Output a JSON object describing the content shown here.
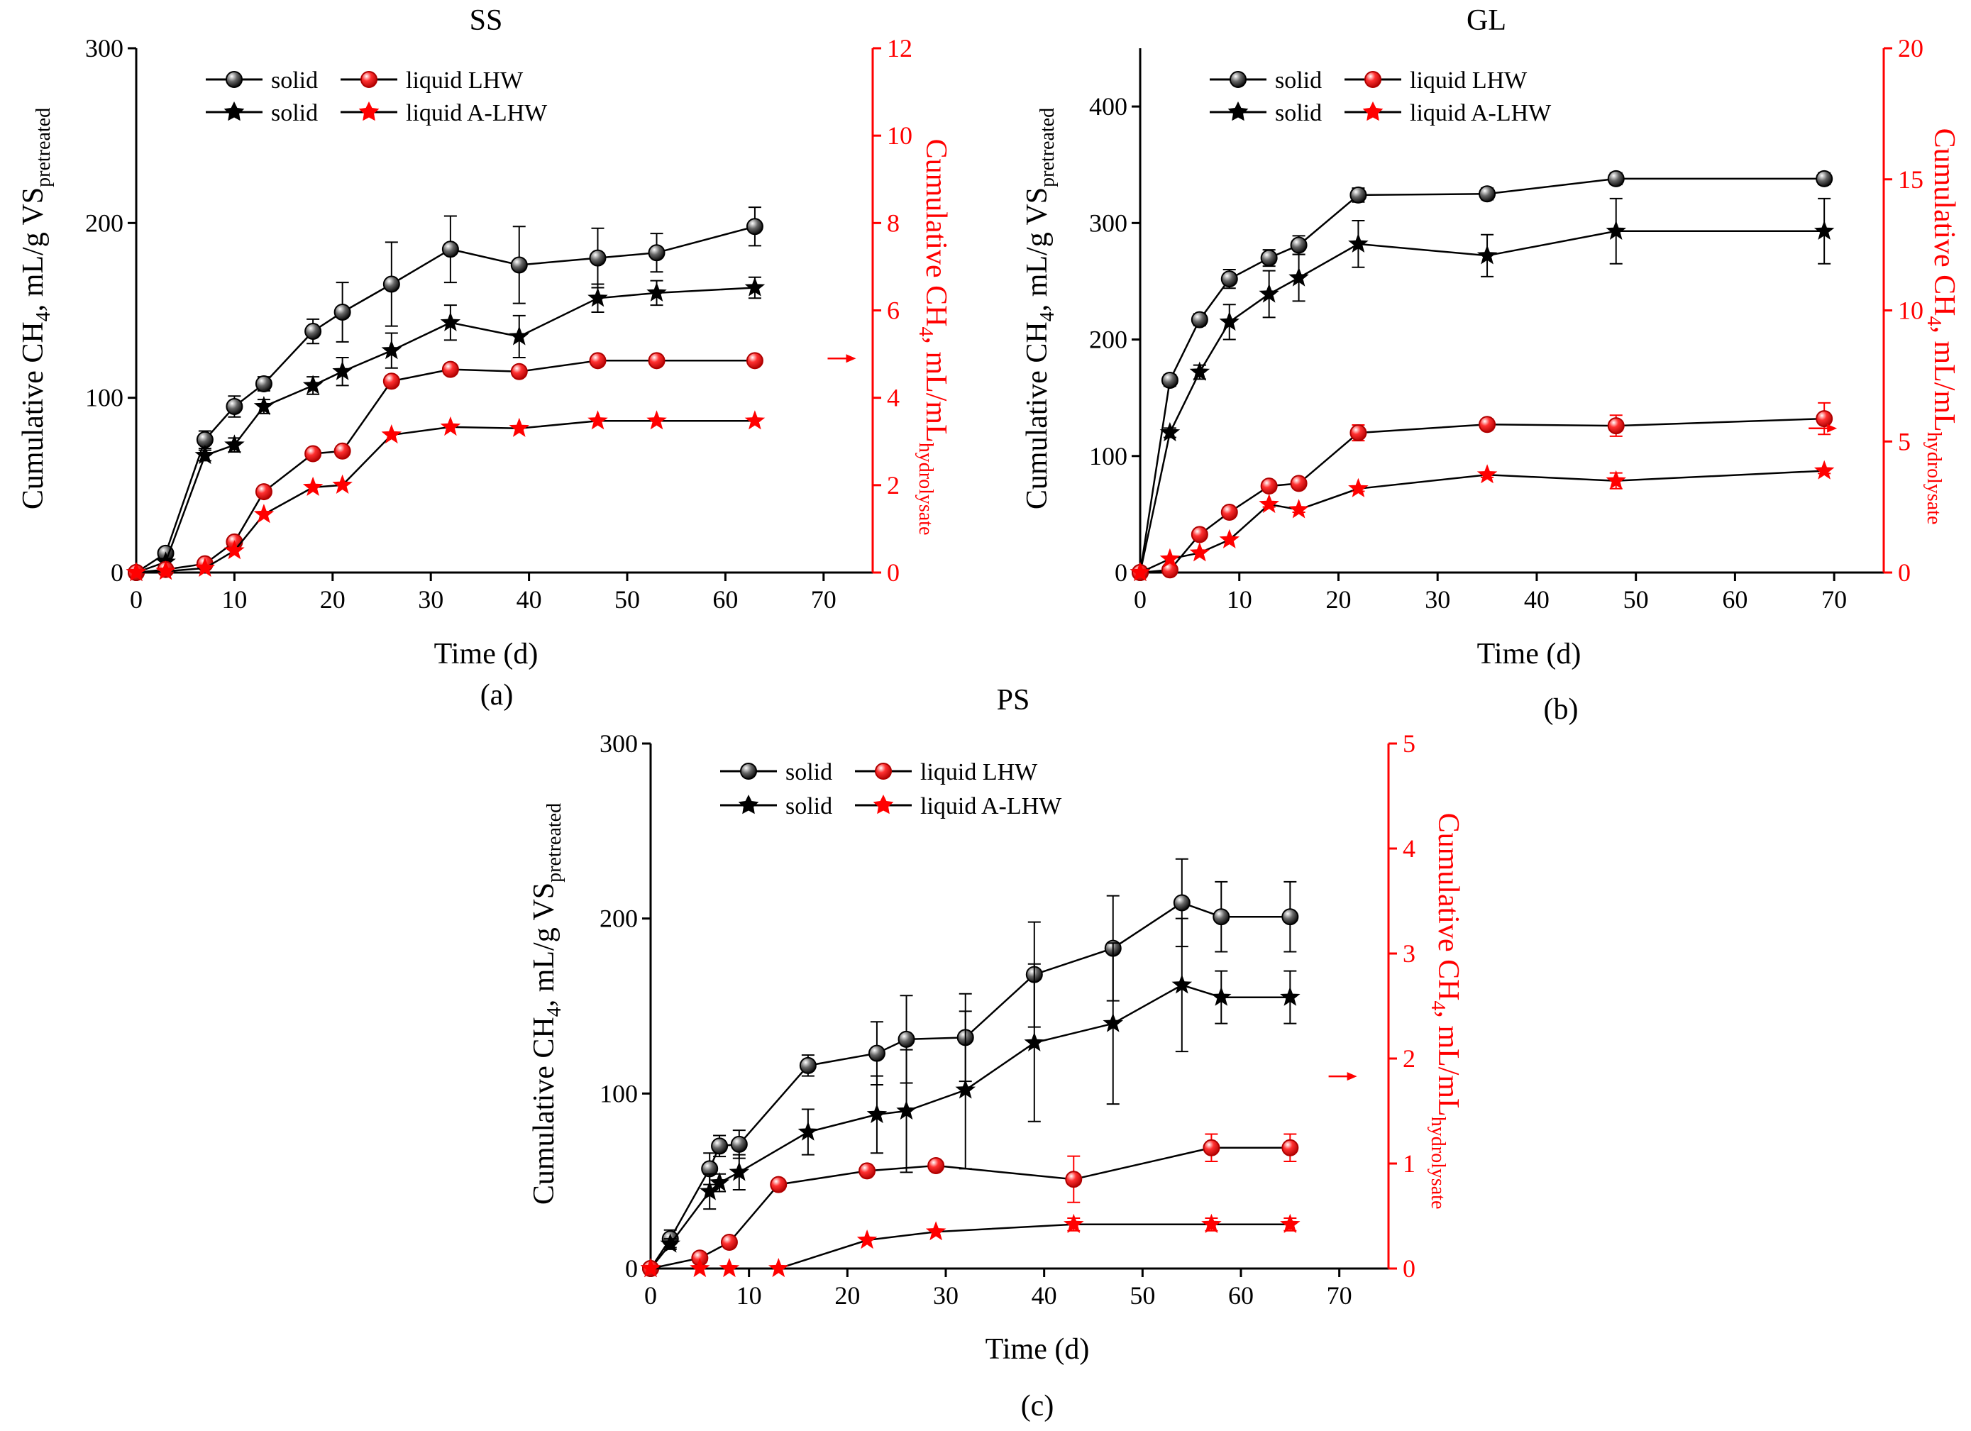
{
  "figure": {
    "colors": {
      "solid": "#000000",
      "liquid": "#ff0000",
      "axis": "#000000",
      "right_axis": "#ff0000"
    },
    "icons": {
      "solid_marker": "sphere-icon",
      "a_lhw_marker": "star-icon",
      "arrow": "arrow-right-icon"
    }
  },
  "chart_data": [
    {
      "type": "line",
      "title": "SS",
      "panel_label": "(a)",
      "xlabel": "Time (d)",
      "ylabel": {
        "pre": "Cumulative CH",
        "sub1": "4",
        "mid": ", mL/g VS",
        "sub2": "pretreated"
      },
      "y2label": {
        "pre": "Cumulative CH",
        "sub1": "4",
        "mid": ", mL/mL",
        "sub2": "hydrolysate"
      },
      "xlim": [
        0,
        75
      ],
      "ylim": [
        0,
        300
      ],
      "y2lim": [
        0,
        12
      ],
      "xticks": [
        0,
        10,
        20,
        30,
        40,
        50,
        60,
        70
      ],
      "yticks": [
        0,
        100,
        200,
        300
      ],
      "y2ticks": [
        0,
        2,
        4,
        6,
        8,
        10,
        12
      ],
      "grid": false,
      "legend_position": "top-center",
      "arrow": {
        "x": 72,
        "y2": 4.9
      },
      "series": [
        {
          "name": "solid",
          "legend": "solid",
          "axis": "left",
          "marker": "sphere",
          "color": "black",
          "x": [
            0,
            3,
            7,
            10,
            13,
            18,
            21,
            26,
            32,
            39,
            47,
            53,
            63
          ],
          "y": [
            0,
            11,
            76,
            95,
            108,
            138,
            149,
            165,
            185,
            176,
            180,
            183,
            198
          ],
          "err": [
            0,
            3,
            5,
            6,
            4,
            7,
            17,
            24,
            19,
            22,
            17,
            11,
            11
          ]
        },
        {
          "name": "solid",
          "legend": "solid",
          "axis": "left",
          "marker": "star",
          "color": "black",
          "x": [
            0,
            3,
            7,
            10,
            13,
            18,
            21,
            26,
            32,
            39,
            47,
            53,
            63
          ],
          "y": [
            0,
            6,
            67,
            73,
            95,
            107,
            115,
            127,
            143,
            135,
            157,
            160,
            163
          ],
          "err": [
            0,
            2,
            3,
            4,
            4,
            5,
            8,
            10,
            10,
            12,
            8,
            7,
            6
          ]
        },
        {
          "name": "liquid LHW",
          "legend": "liquid LHW",
          "axis": "right",
          "marker": "sphere",
          "color": "red",
          "x": [
            0,
            3,
            7,
            10,
            13,
            18,
            21,
            26,
            32,
            39,
            47,
            53,
            63
          ],
          "y": [
            0,
            0.07,
            0.2,
            0.7,
            1.85,
            2.72,
            2.78,
            4.38,
            4.65,
            4.6,
            4.85,
            4.85,
            4.85
          ],
          "err": [
            0,
            0,
            0,
            0,
            0,
            0,
            0,
            0,
            0,
            0,
            0,
            0,
            0
          ]
        },
        {
          "name": "liquid A-LHW",
          "legend": "liquid A-LHW",
          "axis": "right",
          "marker": "star",
          "color": "red",
          "x": [
            0,
            3,
            7,
            10,
            13,
            18,
            21,
            26,
            32,
            39,
            47,
            53,
            63
          ],
          "y": [
            0,
            0.03,
            0.1,
            0.5,
            1.33,
            1.95,
            2.0,
            3.15,
            3.33,
            3.3,
            3.47,
            3.47,
            3.47
          ],
          "err": [
            0,
            0,
            0,
            0,
            0,
            0,
            0,
            0,
            0,
            0,
            0,
            0,
            0
          ]
        }
      ]
    },
    {
      "type": "line",
      "title": "GL",
      "panel_label": "(b)",
      "xlabel": "Time (d)",
      "ylabel": {
        "pre": "Cumulative CH",
        "sub1": "4",
        "mid": ", mL/g VS",
        "sub2": "pretreated"
      },
      "y2label": {
        "pre": "Cumulative CH",
        "sub1": "4",
        "mid": ", mL/mL",
        "sub2": "hydrolysate"
      },
      "xlim": [
        0,
        75
      ],
      "ylim": [
        0,
        450
      ],
      "y2lim": [
        0,
        20
      ],
      "xticks": [
        0,
        10,
        20,
        30,
        40,
        50,
        60,
        70
      ],
      "yticks": [
        0,
        100,
        200,
        300,
        400
      ],
      "y2ticks": [
        0,
        5,
        10,
        15,
        20
      ],
      "grid": false,
      "legend_position": "top-left",
      "arrow": {
        "x": 69,
        "y2": 5.5
      },
      "series": [
        {
          "name": "solid",
          "legend": "solid",
          "axis": "left",
          "marker": "sphere",
          "color": "black",
          "x": [
            0,
            3,
            6,
            9,
            13,
            16,
            22,
            35,
            48,
            69
          ],
          "y": [
            0,
            165,
            217,
            252,
            270,
            281,
            324,
            325,
            338,
            338
          ],
          "err": [
            0,
            5,
            5,
            8,
            7,
            8,
            6,
            5,
            5,
            5
          ]
        },
        {
          "name": "solid",
          "legend": "solid",
          "axis": "left",
          "marker": "star",
          "color": "black",
          "x": [
            0,
            3,
            6,
            9,
            13,
            16,
            22,
            35,
            48,
            69
          ],
          "y": [
            0,
            120,
            172,
            215,
            239,
            253,
            282,
            272,
            293,
            293
          ],
          "err": [
            0,
            4,
            6,
            15,
            20,
            20,
            20,
            18,
            28,
            28
          ]
        },
        {
          "name": "liquid LHW",
          "legend": "liquid LHW",
          "axis": "right",
          "marker": "sphere",
          "color": "red",
          "x": [
            0,
            3,
            6,
            9,
            13,
            16,
            22,
            35,
            48,
            69
          ],
          "y": [
            0,
            0.1,
            1.45,
            2.3,
            3.3,
            3.4,
            5.33,
            5.65,
            5.6,
            5.87
          ],
          "err": [
            0,
            0,
            0,
            0.1,
            0.15,
            0.15,
            0.3,
            0.2,
            0.4,
            0.6
          ]
        },
        {
          "name": "liquid A-LHW",
          "legend": "liquid A-LHW",
          "axis": "right",
          "marker": "star",
          "color": "red",
          "x": [
            0,
            3,
            6,
            9,
            13,
            16,
            22,
            35,
            48,
            69
          ],
          "y": [
            0,
            0.52,
            0.75,
            1.25,
            2.6,
            2.4,
            3.2,
            3.73,
            3.5,
            3.88
          ],
          "err": [
            0,
            0,
            0,
            0,
            0.1,
            0.1,
            0.1,
            0.1,
            0.3,
            0.1
          ]
        }
      ]
    },
    {
      "type": "line",
      "title": "PS",
      "panel_label": "(c)",
      "xlabel": "Time (d)",
      "ylabel": {
        "pre": "Cumulative CH",
        "sub1": "4",
        "mid": ", mL/g VS",
        "sub2": "pretreated"
      },
      "y2label": {
        "pre": "Cumulative CH",
        "sub1": "4",
        "mid": ", mL/mL",
        "sub2": "hydrolysate"
      },
      "xlim": [
        0,
        75
      ],
      "ylim": [
        0,
        300
      ],
      "y2lim": [
        0,
        5
      ],
      "xticks": [
        0,
        10,
        20,
        30,
        40,
        50,
        60,
        70
      ],
      "yticks": [
        0,
        100,
        200,
        300
      ],
      "y2ticks": [
        0,
        1,
        2,
        3,
        4,
        5
      ],
      "grid": false,
      "legend_position": "top-left",
      "arrow": {
        "x": 70.5,
        "y2": 1.83
      },
      "series": [
        {
          "name": "solid",
          "legend": "solid",
          "axis": "left",
          "marker": "sphere",
          "color": "black",
          "x": [
            0,
            2,
            6,
            7,
            9,
            16,
            23,
            26,
            32,
            39,
            47,
            54,
            58,
            65
          ],
          "y": [
            0,
            17,
            57,
            70,
            71,
            116,
            123,
            131,
            132,
            168,
            183,
            209,
            201,
            201
          ],
          "err": [
            0,
            5,
            9,
            6,
            8,
            6,
            18,
            25,
            25,
            30,
            30,
            25,
            20,
            20
          ]
        },
        {
          "name": "solid",
          "legend": "solid",
          "axis": "left",
          "marker": "star",
          "color": "black",
          "x": [
            0,
            2,
            6,
            7,
            9,
            16,
            23,
            26,
            32,
            39,
            47,
            54,
            58,
            65
          ],
          "y": [
            0,
            14,
            44,
            49,
            55,
            78,
            88,
            90,
            102,
            129,
            140,
            162,
            155,
            155
          ],
          "err": [
            0,
            3,
            10,
            5,
            10,
            13,
            22,
            35,
            45,
            45,
            46,
            38,
            15,
            15
          ]
        },
        {
          "name": "liquid LHW",
          "legend": "liquid LHW",
          "axis": "right",
          "marker": "sphere",
          "color": "red",
          "x": [
            0,
            5,
            8,
            13,
            22,
            29,
            43,
            57,
            65
          ],
          "y": [
            0,
            0.1,
            0.25,
            0.8,
            0.93,
            0.98,
            0.85,
            1.15,
            1.15
          ],
          "err": [
            0,
            0,
            0,
            0,
            0,
            0,
            0.22,
            0.13,
            0.13
          ]
        },
        {
          "name": "liquid A-LHW",
          "legend": "liquid A-LHW",
          "axis": "right",
          "marker": "star",
          "color": "red",
          "x": [
            0,
            5,
            8,
            13,
            22,
            29,
            43,
            57,
            65
          ],
          "y": [
            0,
            0,
            0,
            0,
            0.27,
            0.35,
            0.42,
            0.42,
            0.42
          ],
          "err": [
            0,
            0,
            0,
            0,
            0,
            0,
            0.06,
            0.06,
            0.06
          ]
        }
      ]
    }
  ]
}
